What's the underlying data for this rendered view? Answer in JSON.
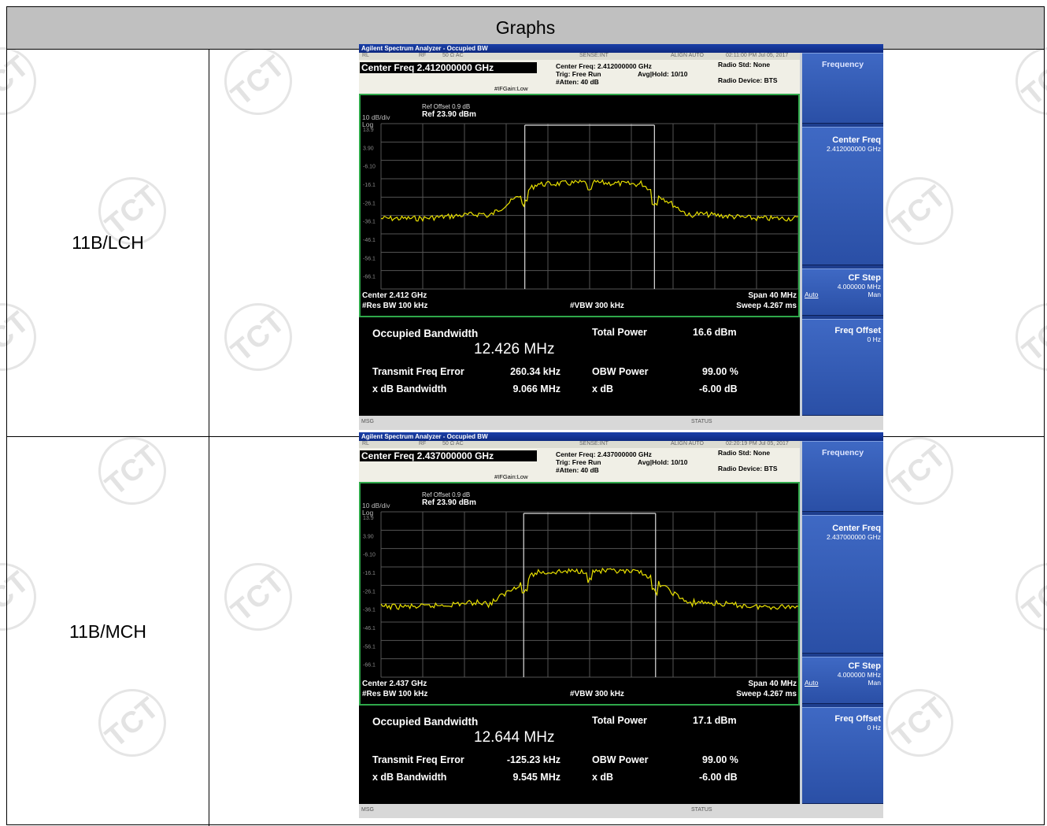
{
  "table": {
    "header": "Graphs",
    "watermark_text": "TCT",
    "rows": [
      {
        "label": "11B/LCH",
        "screen": {
          "window_title": "Agilent Spectrum Analyzer - Occupied BW",
          "top_status": [
            "RL",
            "RF",
            "50 Ω AC",
            "SENSE:INT",
            "ALIGN AUTO",
            "02:11:00 PM Jul 05, 2017"
          ],
          "center_freq_box": "Center Freq 2.412000000 GHz",
          "info_center": "Center Freq: 2.412000000 GHz",
          "info_trig": "Trig: Free Run",
          "info_avg": "Avg|Hold: 10/10",
          "info_atten": "#Atten: 40 dB",
          "info_gain": "#IFGain:Low",
          "radio_std": "Radio Std: None",
          "radio_device": "Radio Device: BTS",
          "ref_offset": "Ref Offset 0.9 dB",
          "ref_level": "Ref 23.90 dBm",
          "scale": "10 dB/div",
          "log": "Log",
          "y_ticks": [
            "13.9",
            "3.90",
            "-6.10",
            "-16.1",
            "-26.1",
            "-36.1",
            "-46.1",
            "-56.1",
            "-66.1"
          ],
          "center": "Center 2.412 GHz",
          "res_bw": "#Res BW 100 kHz",
          "vbw": "#VBW 300 kHz",
          "span": "Span 40 MHz",
          "sweep": "Sweep 4.267 ms",
          "occ_bw_label": "Occupied Bandwidth",
          "occ_bw_value": "12.426 MHz",
          "total_power_label": "Total Power",
          "total_power_value": "16.6 dBm",
          "tx_freq_err_label": "Transmit Freq Error",
          "tx_freq_err_value": "260.34 kHz",
          "obw_power_label": "OBW Power",
          "obw_power_value": "99.00 %",
          "xdb_bw_label": "x dB Bandwidth",
          "xdb_bw_value": "9.066 MHz",
          "xdb_label": "x dB",
          "xdb_value": "-6.00 dB",
          "msg": "MSG",
          "status": "STATUS",
          "softkeys": {
            "menu": "Frequency",
            "center_freq": "Center Freq",
            "center_freq_val": "2.412000000 GHz",
            "cf_step": "CF Step",
            "cf_step_val": "4.000000 MHz",
            "auto": "Auto",
            "man": "Man",
            "freq_offset": "Freq Offset",
            "freq_offset_val": "0 Hz"
          }
        }
      },
      {
        "label": "11B/MCH",
        "screen": {
          "window_title": "Agilent Spectrum Analyzer - Occupied BW",
          "top_status": [
            "RL",
            "RF",
            "50 Ω AC",
            "SENSE:INT",
            "ALIGN AUTO",
            "02:20:19 PM Jul 05, 2017"
          ],
          "center_freq_box": "Center Freq 2.437000000 GHz",
          "info_center": "Center Freq: 2.437000000 GHz",
          "info_trig": "Trig: Free Run",
          "info_avg": "Avg|Hold: 10/10",
          "info_atten": "#Atten: 40 dB",
          "info_gain": "#IFGain:Low",
          "radio_std": "Radio Std: None",
          "radio_device": "Radio Device: BTS",
          "ref_offset": "Ref Offset 0.9 dB",
          "ref_level": "Ref 23.90 dBm",
          "scale": "10 dB/div",
          "log": "Log",
          "y_ticks": [
            "13.9",
            "3.90",
            "-6.10",
            "-16.1",
            "-26.1",
            "-36.1",
            "-46.1",
            "-56.1",
            "-66.1"
          ],
          "center": "Center 2.437 GHz",
          "res_bw": "#Res BW 100 kHz",
          "vbw": "#VBW 300 kHz",
          "span": "Span 40 MHz",
          "sweep": "Sweep 4.267 ms",
          "occ_bw_label": "Occupied Bandwidth",
          "occ_bw_value": "12.644 MHz",
          "total_power_label": "Total Power",
          "total_power_value": "17.1 dBm",
          "tx_freq_err_label": "Transmit Freq Error",
          "tx_freq_err_value": "-125.23 kHz",
          "obw_power_label": "OBW Power",
          "obw_power_value": "99.00 %",
          "xdb_bw_label": "x dB Bandwidth",
          "xdb_bw_value": "9.545 MHz",
          "xdb_label": "x dB",
          "xdb_value": "-6.00 dB",
          "msg": "MSG",
          "status": "STATUS",
          "softkeys": {
            "menu": "Frequency",
            "center_freq": "Center Freq",
            "center_freq_val": "2.437000000 GHz",
            "cf_step": "CF Step",
            "cf_step_val": "4.000000 MHz",
            "auto": "Auto",
            "man": "Man",
            "freq_offset": "Freq Offset",
            "freq_offset_val": "0 Hz"
          }
        }
      }
    ]
  },
  "colors": {
    "trace": "#e8e000",
    "graph_border": "#2fa84a",
    "softkey": "#2a4fa6",
    "header_bg": "#c0c0c0"
  }
}
